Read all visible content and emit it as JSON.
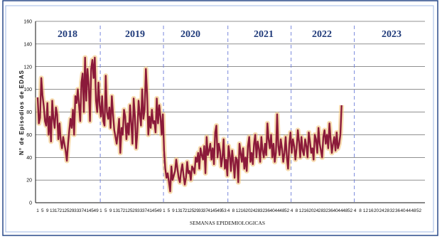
{
  "chart_data": {
    "type": "line",
    "ylabel": "N° de Episodios de EDAS",
    "xlabel": "SEMANAS   EPIDEMIOLOGICAS",
    "ylim": [
      0,
      160
    ],
    "yticks": [
      "0",
      "20",
      "40",
      "60",
      "80",
      "100",
      "120",
      "140",
      "160"
    ],
    "year_labels": [
      "2018",
      "2019",
      "2020",
      "2021",
      "2022",
      "2023"
    ],
    "week_tick_labels": [
      "1",
      "5",
      "9",
      "13",
      "17",
      "21",
      "25",
      "29",
      "33",
      "37",
      "41",
      "45",
      "49"
    ],
    "year_week_ticks": [
      [
        "1",
        "5",
        "9",
        "13",
        "17",
        "21",
        "25",
        "29",
        "33",
        "37",
        "41",
        "45",
        "49"
      ],
      [
        "1",
        "5",
        "9",
        "13",
        "17",
        "21",
        "25",
        "29",
        "33",
        "37",
        "41",
        "45",
        "49"
      ],
      [
        "1",
        "5",
        "9",
        "13",
        "17",
        "21",
        "25",
        "29",
        "33",
        "37",
        "41",
        "45",
        "49",
        "53"
      ],
      [
        "4",
        "8",
        "12",
        "16",
        "20",
        "24",
        "28",
        "32",
        "36",
        "40",
        "44",
        "48",
        "52"
      ],
      [
        "4",
        "8",
        "12",
        "16",
        "20",
        "24",
        "28",
        "32",
        "36",
        "40",
        "44",
        "48",
        "52"
      ],
      [
        "4",
        "8",
        "12",
        "16",
        "20",
        "24",
        "28",
        "32",
        "36",
        "40",
        "44",
        "48",
        "52"
      ]
    ],
    "grid": true,
    "series": [
      {
        "name": "",
        "color": "#8b1a3a",
        "glow": "#f0c070",
        "values": [
          93,
          70,
          75,
          110,
          95,
          85,
          72,
          68,
          88,
          60,
          76,
          54,
          90,
          74,
          66,
          84,
          78,
          56,
          70,
          55,
          48,
          58,
          52,
          46,
          37,
          52,
          64,
          74,
          66,
          82,
          60,
          94,
          88,
          100,
          86,
          72,
          106,
          114,
          80,
          128,
          90,
          118,
          104,
          72,
          118,
          126,
          110,
          128,
          90,
          80,
          106,
          86,
          76,
          94,
          72,
          68,
          112,
          80,
          74,
          84,
          66,
          94,
          78,
          64,
          58,
          52,
          62,
          74,
          44,
          66,
          60,
          82,
          76,
          56,
          70,
          60,
          86,
          70,
          52,
          92,
          76,
          48,
          62,
          90,
          78,
          68,
          100,
          74,
          82,
          118,
          96,
          60,
          76,
          66,
          82,
          70,
          72,
          62,
          92,
          70,
          86,
          76,
          60,
          78,
          46,
          30,
          22,
          26,
          18,
          10,
          32,
          20,
          24,
          28,
          38,
          30,
          22,
          18,
          28,
          34,
          24,
          16,
          22,
          36,
          26,
          28,
          20,
          32,
          30,
          26,
          40,
          36,
          44,
          30,
          48,
          42,
          38,
          50,
          26,
          58,
          42,
          46,
          52,
          38,
          48,
          34,
          62,
          68,
          40,
          52,
          46,
          32,
          40,
          56,
          30,
          38,
          24,
          50,
          42,
          28,
          46,
          36,
          22,
          40,
          38,
          18,
          52,
          44,
          36,
          48,
          30,
          40,
          28,
          50,
          58,
          36,
          44,
          34,
          52,
          60,
          40,
          54,
          48,
          36,
          58,
          46,
          40,
          52,
          42,
          70,
          56,
          48,
          60,
          40,
          52,
          36,
          44,
          78,
          50,
          42,
          56,
          48,
          36,
          44,
          58,
          40,
          30,
          52,
          62,
          44,
          56,
          50,
          38,
          48,
          64,
          54,
          40,
          58,
          46,
          42,
          56,
          50,
          40,
          62,
          54,
          44,
          48,
          38,
          60,
          56,
          44,
          66,
          52,
          46,
          40,
          58,
          64,
          52,
          60,
          48,
          70,
          56,
          44,
          52,
          58,
          46,
          62,
          48,
          52,
          60,
          86
        ]
      }
    ]
  }
}
